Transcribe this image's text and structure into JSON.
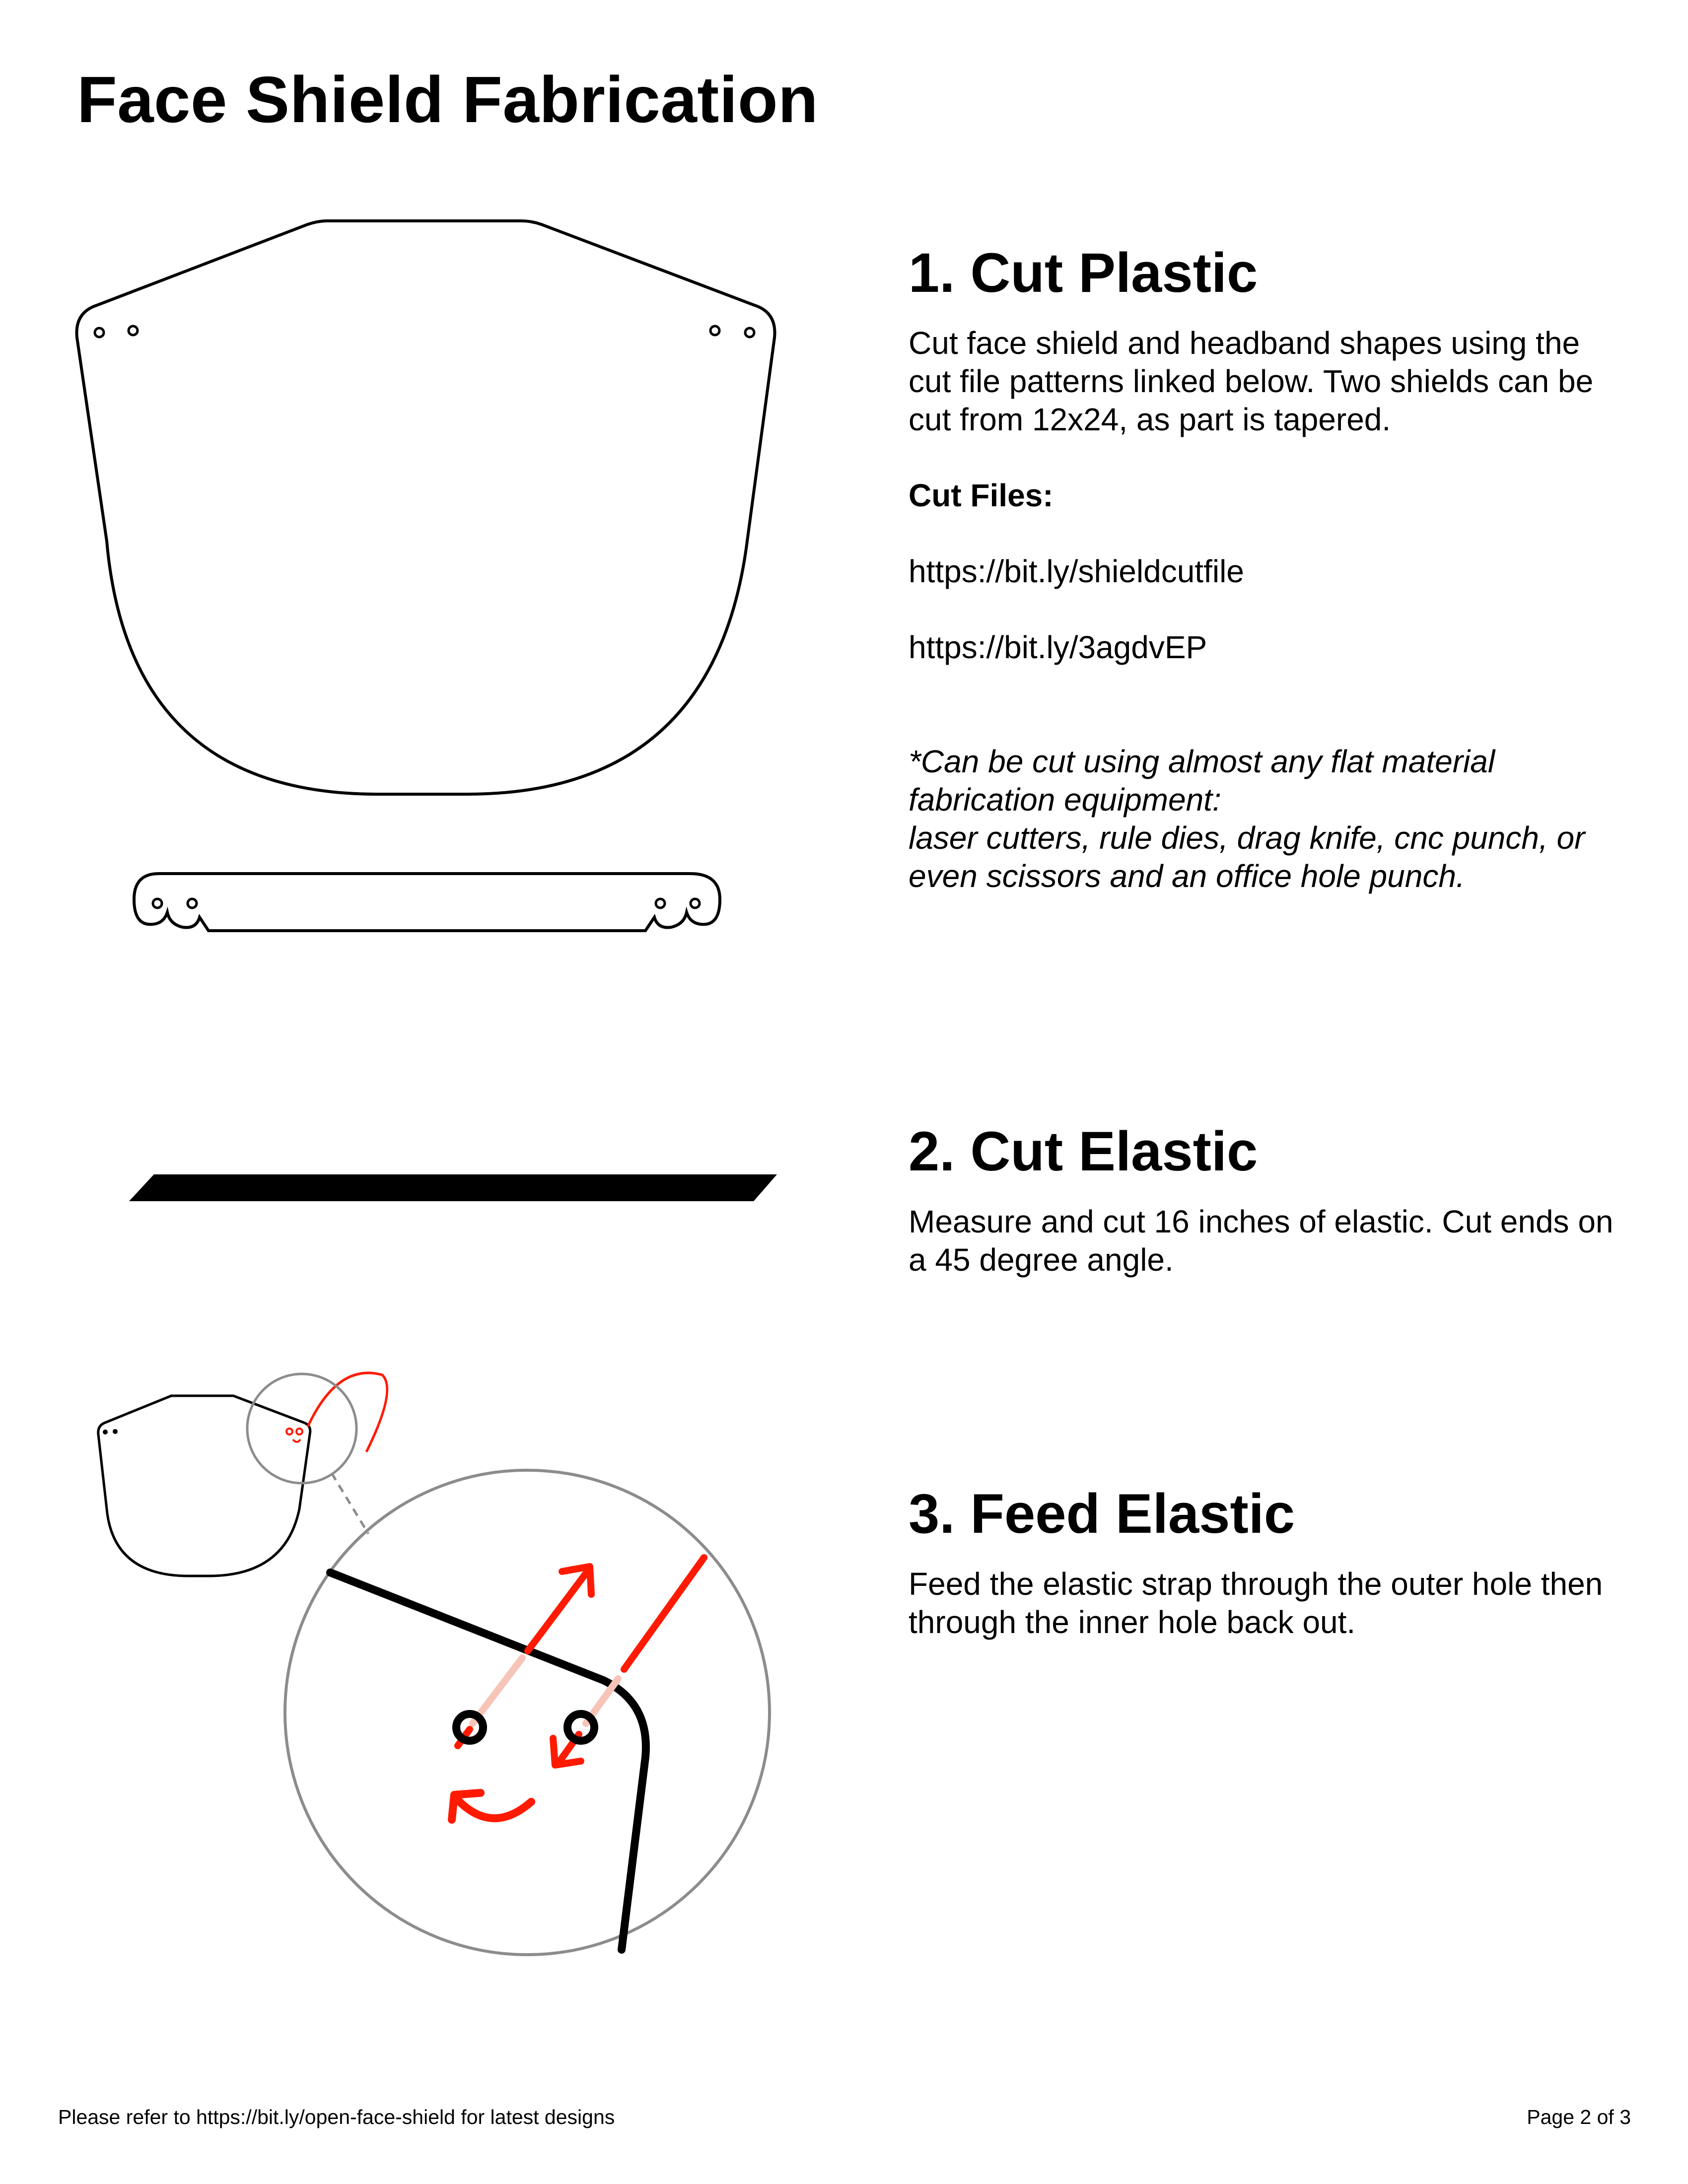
{
  "title": "Face Shield Fabrication",
  "sections": [
    {
      "heading": "1. Cut Plastic",
      "body": "Cut face shield and headband shapes using the cut file patterns linked below. Two shields can be cut from 12x24, as part is tapered.",
      "files_label": "Cut Files:",
      "links": [
        "https://bit.ly/shieldcutfile",
        "https://bit.ly/3agdvEP"
      ],
      "note_lines": [
        "*Can be cut using almost any flat material fabrication equipment:",
        "laser cutters, rule dies, drag knife, cnc punch, or even scissors and an office hole punch."
      ]
    },
    {
      "heading": "2. Cut Elastic",
      "body": "Measure and cut 16 inches of elastic. Cut ends on a 45 degree angle."
    },
    {
      "heading": "3. Feed Elastic",
      "body": "Feed the elastic strap through the outer hole then through the inner hole back out."
    }
  ],
  "footer": {
    "left": "Please refer to https://bit.ly/open-face-shield for latest designs",
    "right": "Page 2 of 3"
  },
  "colors": {
    "accent": "#ff1a00",
    "accent_faded": "#f7c4b8",
    "magnifier_ring": "#8c8c8c"
  }
}
